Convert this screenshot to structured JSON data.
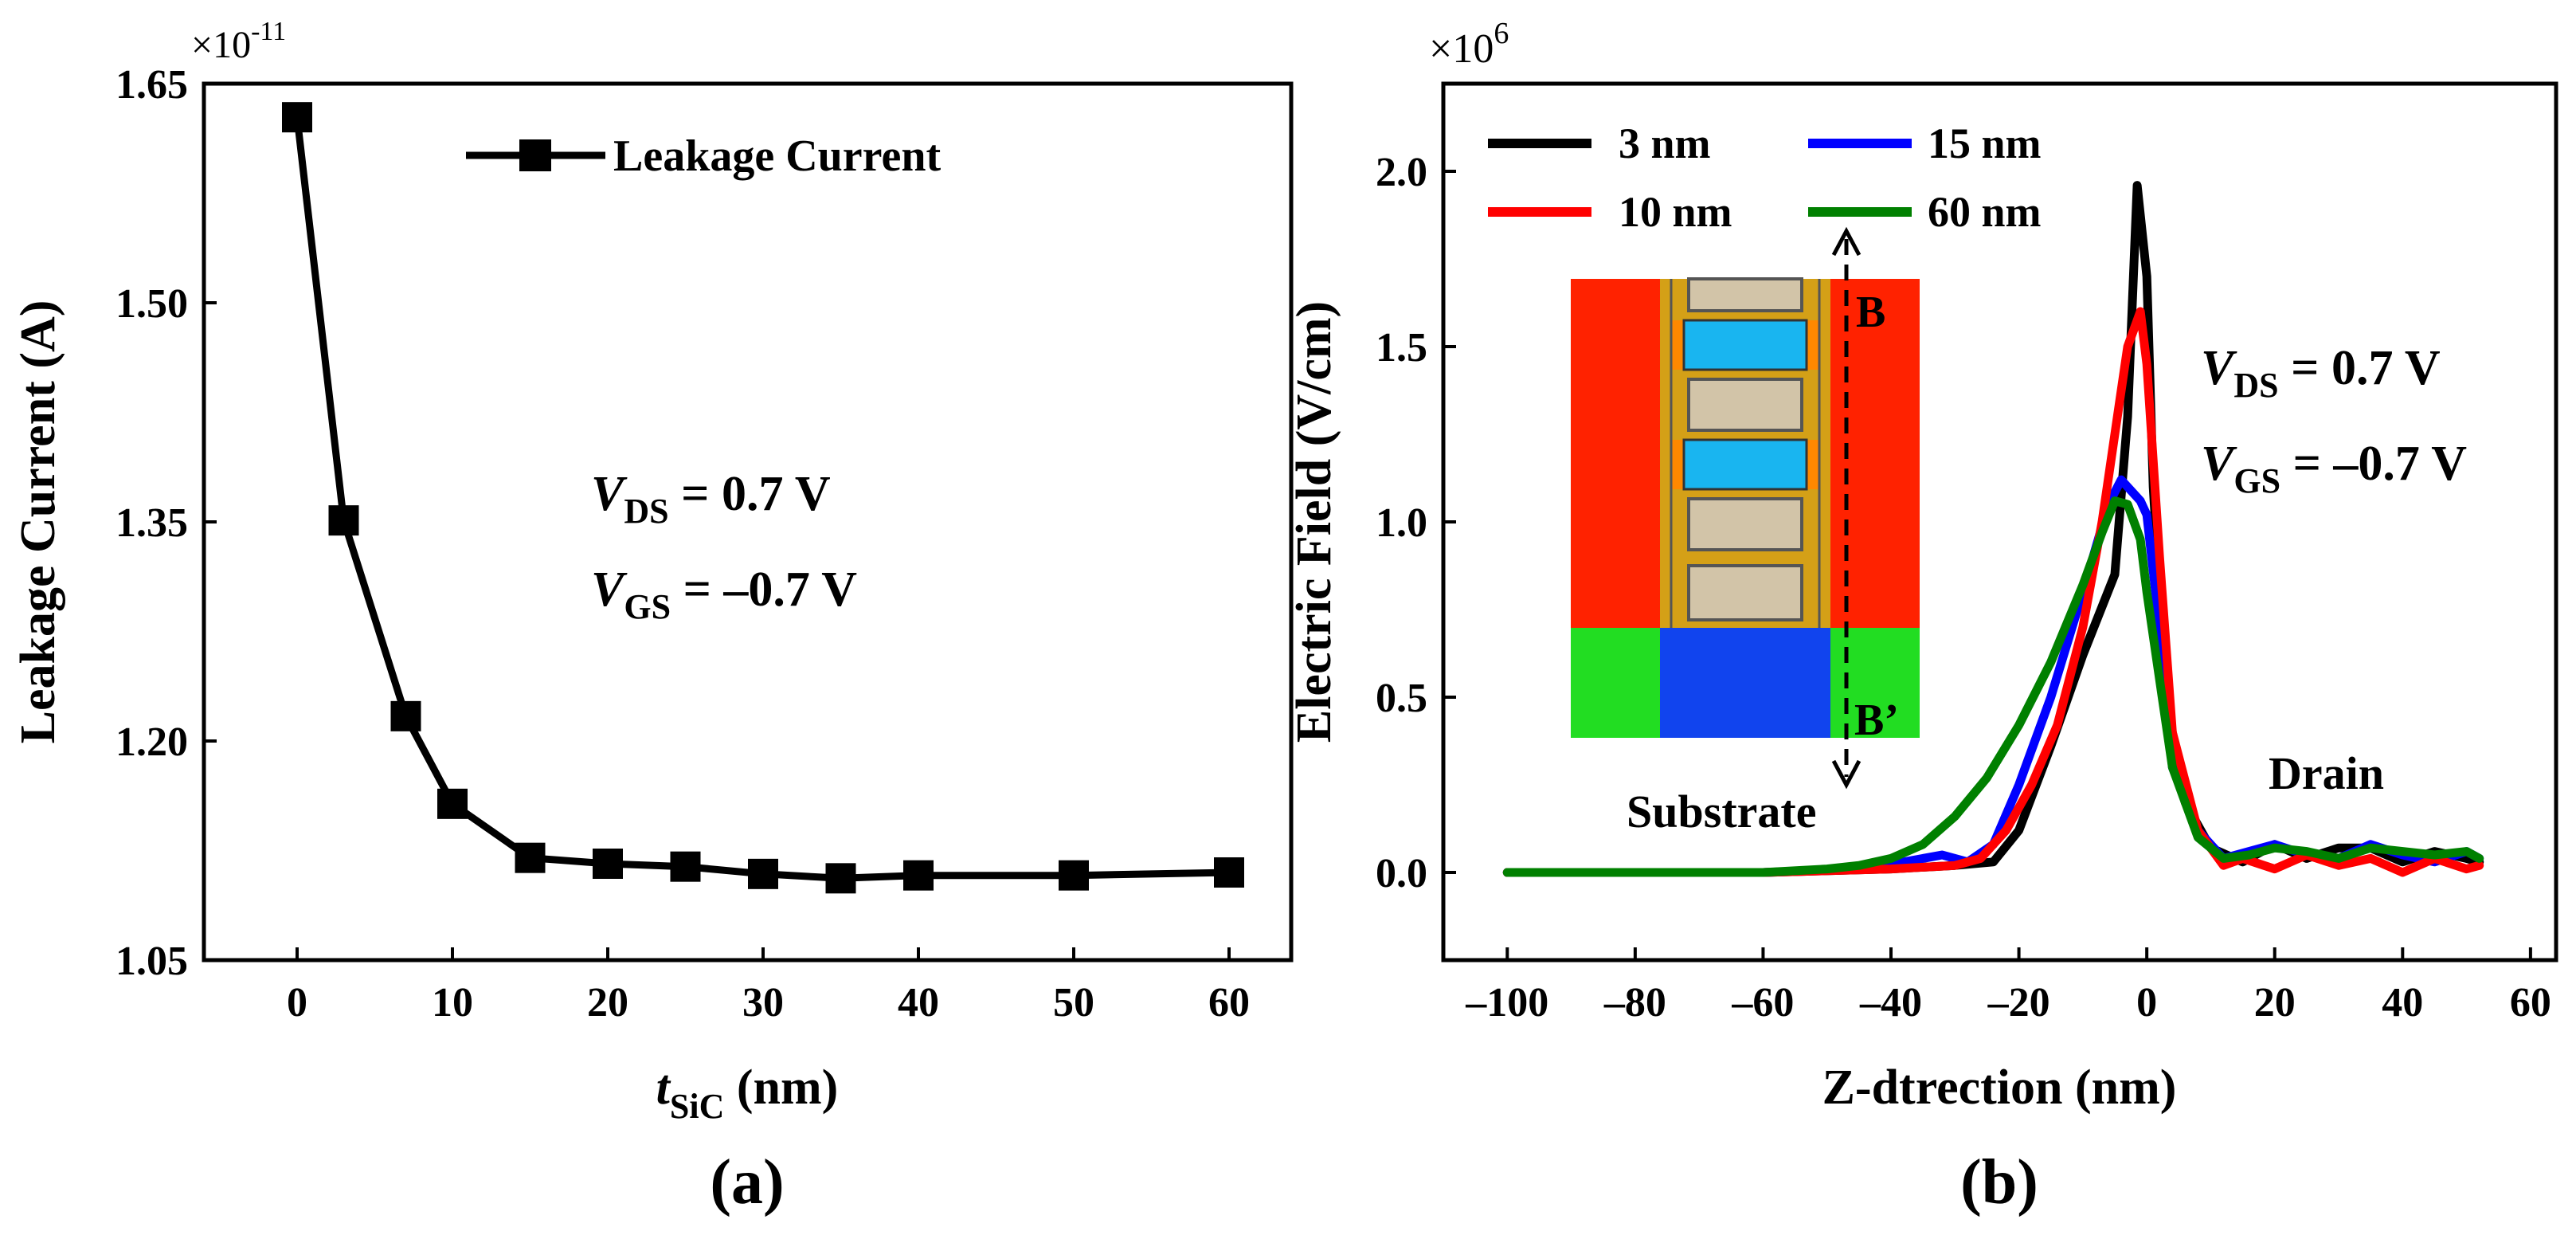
{
  "chart_data": [
    {
      "type": "line",
      "panel_label": "(a)",
      "ylabel": "Leakage Current (A)",
      "xlabel_main": "t",
      "xlabel_sub": "SiC",
      "xlabel_unit": " (nm)",
      "y_multiplier_base": "×10",
      "y_multiplier_exp": "-11",
      "xlim": [
        -6,
        64
      ],
      "ylim": [
        1.05,
        1.65
      ],
      "xticks": [
        0,
        10,
        20,
        30,
        40,
        50,
        60
      ],
      "yticks": [
        1.05,
        1.2,
        1.35,
        1.5,
        1.65
      ],
      "ytick_labels": [
        "1.05",
        "1.20",
        "1.35",
        "1.50",
        "1.65"
      ],
      "legend_position": "top-right",
      "series": [
        {
          "name": "Leakage Current",
          "color": "#000000",
          "marker": "square",
          "x": [
            0,
            3,
            7,
            10,
            15,
            20,
            25,
            30,
            35,
            40,
            50,
            60
          ],
          "y": [
            1.627,
            1.351,
            1.217,
            1.157,
            1.12,
            1.116,
            1.114,
            1.109,
            1.106,
            1.108,
            1.108,
            1.11
          ]
        }
      ],
      "annotations": [
        {
          "main": "V",
          "sub": "DS",
          "rest": " = 0.7 V"
        },
        {
          "main": "V",
          "sub": "GS",
          "rest": " = –0.7 V"
        }
      ]
    },
    {
      "type": "line",
      "panel_label": "(b)",
      "ylabel": "Electric Field (V/cm)",
      "xlabel": "Z-dtrection (nm)",
      "y_multiplier_base": "×10",
      "y_multiplier_exp": "6",
      "xlim": [
        -110,
        64
      ],
      "ylim": [
        -0.25,
        2.25
      ],
      "xticks": [
        -100,
        -80,
        -60,
        -40,
        -20,
        0,
        20,
        40,
        60
      ],
      "xtick_labels": [
        "–100",
        "–80",
        "–60",
        "–40",
        "–20",
        "0",
        "20",
        "40",
        "60"
      ],
      "yticks": [
        0,
        0.5,
        1,
        1.5,
        2
      ],
      "ytick_labels": [
        "0.0",
        "0.5",
        "1.0",
        "1.5",
        "2.0"
      ],
      "legend_position": "top-left",
      "series": [
        {
          "name": "3 nm",
          "color": "#000000",
          "x": [
            -100,
            -60,
            -40,
            -30,
            -24,
            -20,
            -15,
            -10,
            -5,
            -3,
            -1.5,
            0,
            1,
            3,
            6,
            10,
            15,
            20,
            25,
            30,
            35,
            40,
            45,
            50,
            52
          ],
          "y": [
            0,
            0,
            0.01,
            0.02,
            0.03,
            0.12,
            0.36,
            0.62,
            0.85,
            1.3,
            1.96,
            1.7,
            1.1,
            0.5,
            0.2,
            0.07,
            0.03,
            0.08,
            0.04,
            0.07,
            0.07,
            0.03,
            0.06,
            0.04,
            0.03
          ]
        },
        {
          "name": "15 nm",
          "color": "#0000ff",
          "x": [
            -100,
            -60,
            -45,
            -38,
            -32,
            -28,
            -24,
            -20,
            -15,
            -10,
            -6,
            -4,
            -1,
            0,
            2,
            4,
            8,
            12,
            16,
            20,
            25,
            30,
            35,
            40,
            45,
            50,
            52
          ],
          "y": [
            0,
            0,
            0.01,
            0.03,
            0.05,
            0.03,
            0.08,
            0.25,
            0.5,
            0.8,
            1.05,
            1.12,
            1.06,
            1.02,
            0.7,
            0.3,
            0.12,
            0.04,
            0.06,
            0.08,
            0.05,
            0.04,
            0.08,
            0.05,
            0.03,
            0.06,
            0.04
          ]
        },
        {
          "name": "10 nm",
          "color": "#ff0000",
          "x": [
            -100,
            -60,
            -40,
            -30,
            -26,
            -22,
            -18,
            -14,
            -10,
            -7,
            -5,
            -3,
            -1,
            0,
            2,
            4,
            8,
            12,
            15,
            20,
            25,
            30,
            35,
            40,
            45,
            50,
            52
          ],
          "y": [
            0,
            0,
            0.01,
            0.02,
            0.04,
            0.12,
            0.25,
            0.42,
            0.7,
            1.0,
            1.25,
            1.5,
            1.6,
            1.45,
            0.9,
            0.4,
            0.12,
            0.02,
            0.04,
            0.01,
            0.05,
            0.02,
            0.04,
            0.0,
            0.04,
            0.01,
            0.02
          ]
        },
        {
          "name": "60 nm",
          "color": "#008000",
          "x": [
            -100,
            -80,
            -60,
            -50,
            -45,
            -40,
            -35,
            -30,
            -25,
            -20,
            -15,
            -10,
            -7,
            -5,
            -3,
            -1,
            0,
            2,
            4,
            8,
            12,
            16,
            20,
            25,
            30,
            35,
            40,
            45,
            50,
            52
          ],
          "y": [
            0,
            0,
            0,
            0.01,
            0.02,
            0.04,
            0.08,
            0.16,
            0.27,
            0.42,
            0.6,
            0.82,
            0.97,
            1.06,
            1.05,
            0.95,
            0.8,
            0.55,
            0.3,
            0.1,
            0.04,
            0.05,
            0.07,
            0.06,
            0.04,
            0.07,
            0.06,
            0.05,
            0.06,
            0.04
          ]
        }
      ],
      "annotations": [
        {
          "main": "V",
          "sub": "DS",
          "rest": " = 0.7 V"
        },
        {
          "main": "V",
          "sub": "GS",
          "rest": " = –0.7 V"
        }
      ],
      "inset": {
        "label_top": "B",
        "label_bottom": "B’",
        "label_substrate": "Substrate",
        "label_drain": "Drain",
        "colors": {
          "side": "#ff2200",
          "substrate_left": "#22dd22",
          "substrate_mid": "#1144ee",
          "liner": "#d4a017",
          "gate_stack": "#d2c4a8",
          "channel": "#19b5f0",
          "edge": "#ff8800"
        }
      }
    }
  ]
}
